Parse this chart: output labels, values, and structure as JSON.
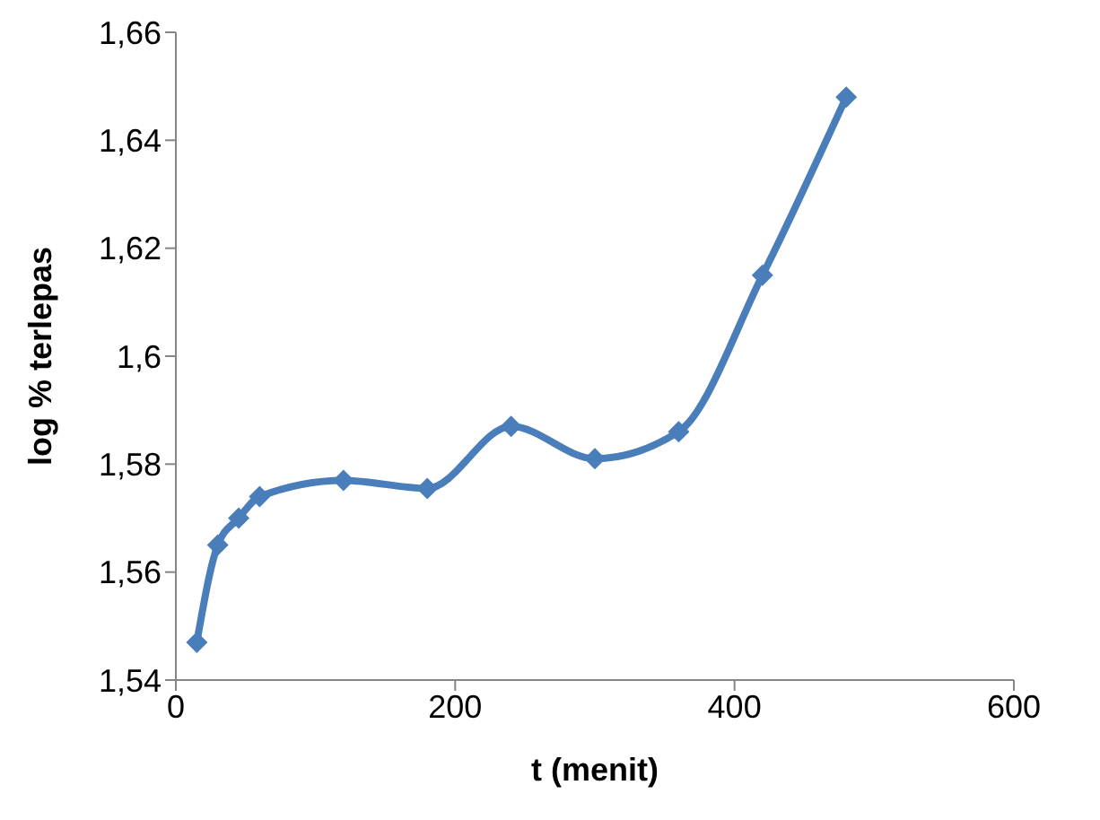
{
  "chart_data": {
    "type": "line",
    "xlabel": "t (menit)",
    "ylabel": "log % terlepas",
    "x": [
      15,
      30,
      45,
      60,
      120,
      180,
      240,
      300,
      360,
      420,
      480
    ],
    "series": [
      {
        "color": "#4a7ebb",
        "values": [
          1.547,
          1.565,
          1.57,
          1.574,
          1.577,
          1.5755,
          1.587,
          1.581,
          1.586,
          1.615,
          1.648
        ]
      }
    ],
    "xlim": [
      0,
      600
    ],
    "xticks": [
      0,
      200,
      400,
      600
    ],
    "ylim": [
      1.54,
      1.66
    ],
    "yticks": [
      {
        "value": 1.54,
        "label": "1,54"
      },
      {
        "value": 1.56,
        "label": "1,56"
      },
      {
        "value": 1.58,
        "label": "1,58"
      },
      {
        "value": 1.6,
        "label": "1,6"
      },
      {
        "value": 1.62,
        "label": "1,62"
      },
      {
        "value": 1.64,
        "label": "1,64"
      },
      {
        "value": 1.66,
        "label": "1,66"
      }
    ],
    "grid": false,
    "legend": false,
    "marker": "diamond",
    "line_style": "solid"
  }
}
